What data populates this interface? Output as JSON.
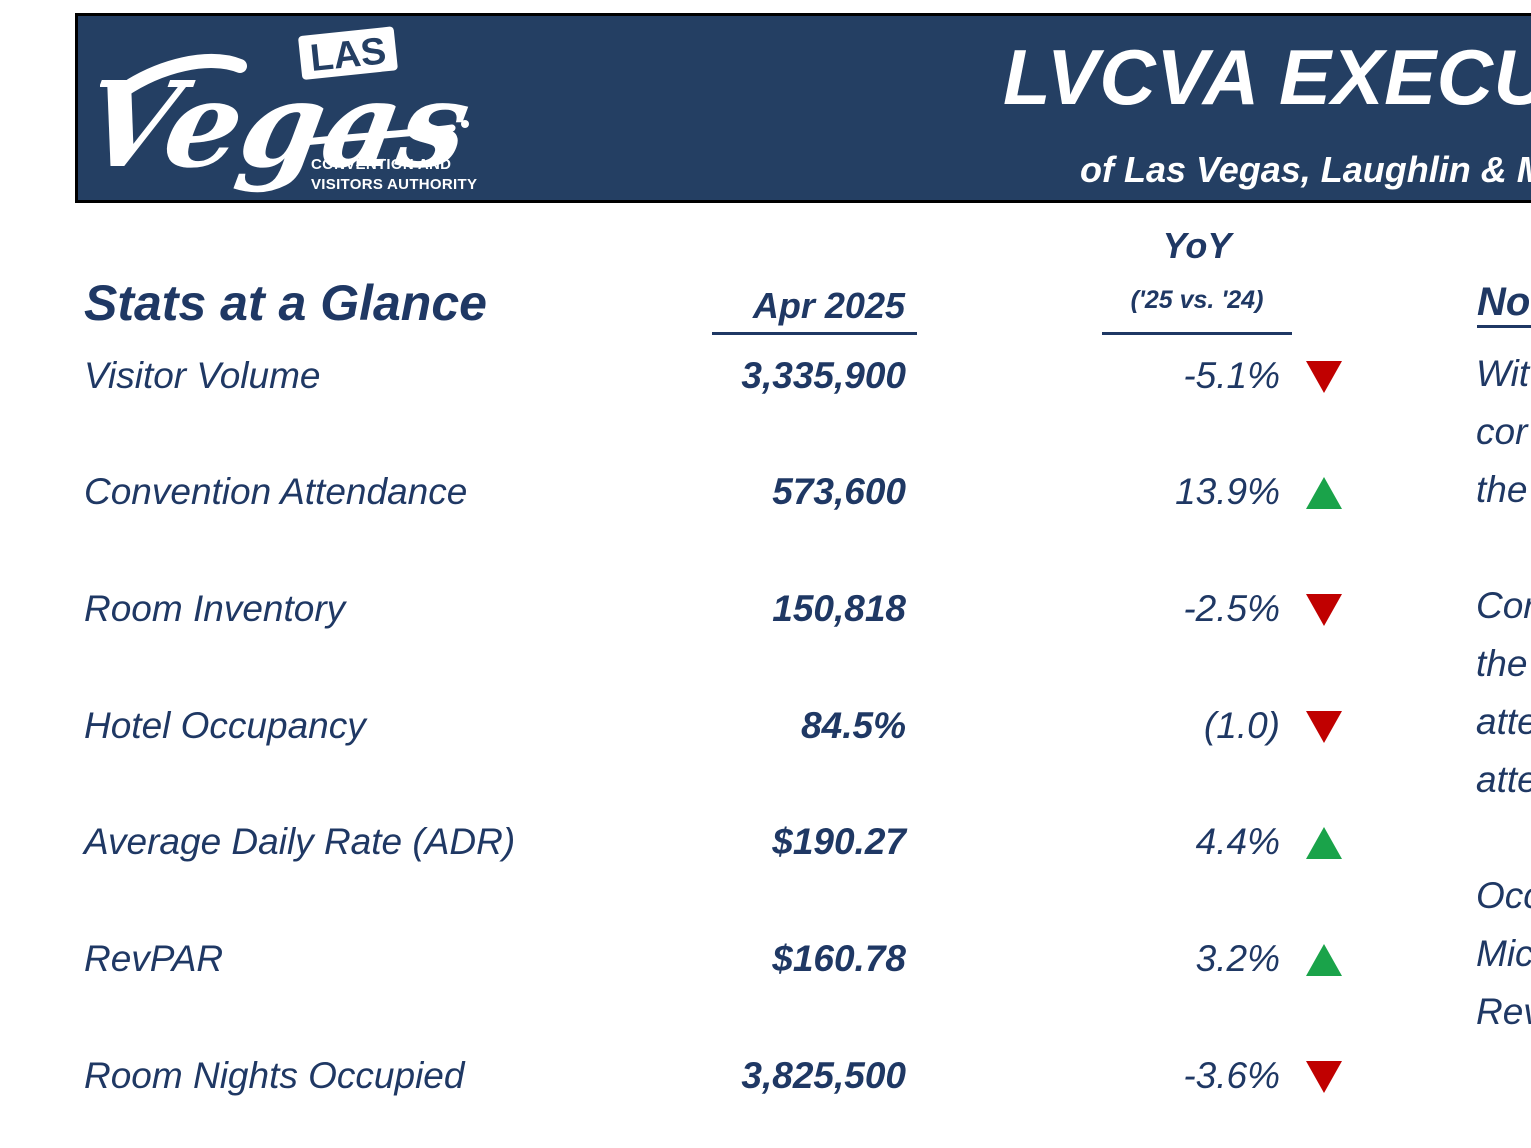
{
  "header": {
    "logo": {
      "las": "LAS",
      "vegas": "Vegas",
      "sub_line1": "CONVENTION AND",
      "sub_line2": "VISITORS AUTHORITY"
    },
    "title": "LVCVA EXECU",
    "subtitle": "of Las Vegas, Laughlin & M"
  },
  "colors": {
    "banner": "#243f63",
    "text": "#1f3864",
    "up": "#1aa34a",
    "down": "#c00000"
  },
  "table": {
    "title": "Stats at a Glance",
    "month_header": "Apr 2025",
    "yoy_header": "YoY",
    "yoy_subheader": "('25 vs. '24)",
    "notes_header": "No",
    "rows": [
      {
        "label": "Visitor Volume",
        "value": "3,335,900",
        "change": "-5.1%",
        "direction": "down"
      },
      {
        "label": "Convention Attendance",
        "value": "573,600",
        "change": "13.9%",
        "direction": "up"
      },
      {
        "label": "Room Inventory",
        "value": "150,818",
        "change": "-2.5%",
        "direction": "down"
      },
      {
        "label": "Hotel Occupancy",
        "value": "84.5%",
        "change": "(1.0)",
        "direction": "down"
      },
      {
        "label": "Average Daily Rate (ADR)",
        "value": "$190.27",
        "change": "4.4%",
        "direction": "up"
      },
      {
        "label": "RevPAR",
        "value": "$160.78",
        "change": "3.2%",
        "direction": "up"
      },
      {
        "label": "Room Nights Occupied",
        "value": "3,825,500",
        "change": "-3.6%",
        "direction": "down"
      }
    ]
  },
  "notes": {
    "block1": [
      "Wit",
      "cor",
      "the"
    ],
    "block2": [
      "Cor",
      "the",
      "atte",
      "atte"
    ],
    "block3": [
      "Occ",
      "Mic",
      "Rev"
    ]
  }
}
